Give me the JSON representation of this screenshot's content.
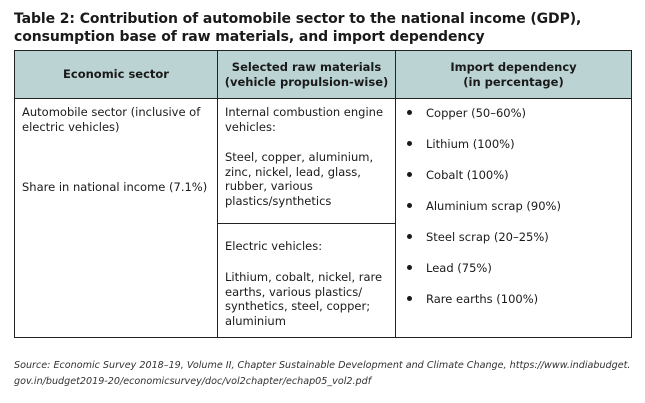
{
  "title": {
    "line1": "Table 2: Contribution of automobile sector to the national income (GDP),",
    "line2": "consumption base of raw materials, and import dependency"
  },
  "table": {
    "headers": {
      "sector": "Economic sector",
      "materials": "Selected raw materials\n(vehicle propulsion-wise)",
      "import": "Import dependency\n(in percentage)"
    },
    "sector": {
      "name": "Automobile sector (inclusive of electric vehicles)",
      "share": "Share in national income (7.1%)"
    },
    "ice": {
      "label": "Internal combustion engine vehicles:",
      "materials": "Steel, copper, aluminium, zinc, nickel, lead, glass, rubber, various plastics/synthetics"
    },
    "ev": {
      "label": "Electric vehicles:",
      "materials": "Lithium, cobalt, nickel, rare earths, various plastics/ synthetics, steel, copper; aluminium"
    },
    "imports": [
      "Copper (50–60%)",
      "Lithium (100%)",
      "Cobalt (100%)",
      "Aluminium scrap (90%)",
      "Steel scrap (20–25%)",
      "Lead (75%)",
      "Rare earths (100%)"
    ]
  },
  "source": {
    "line1": "Source: Economic Survey 2018–19, Volume II, Chapter Sustainable Development and Climate Change, https://www.indiabudget.",
    "line2": "gov.in/budget2019-20/economicsurvey/doc/vol2chapter/echap05_vol2.pdf"
  }
}
